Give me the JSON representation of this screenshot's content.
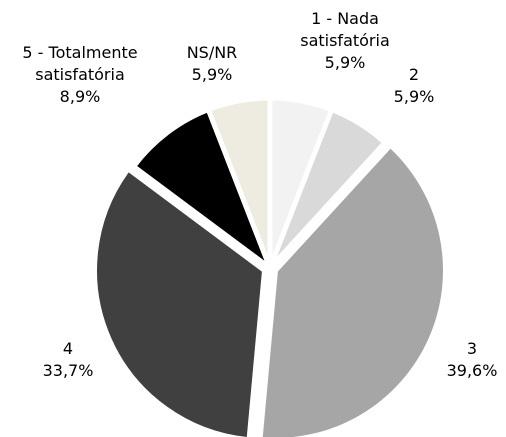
{
  "chart_data": {
    "type": "pie",
    "categories": [
      "1 - Nada satisfatória",
      "2",
      "3",
      "4",
      "5 - Totalmente satisfatória",
      "NS/NR"
    ],
    "values": [
      5.9,
      5.9,
      39.6,
      33.7,
      8.9,
      5.9
    ],
    "value_labels": [
      "5,9%",
      "5,9%",
      "39,6%",
      "33,7%",
      "8,9%",
      "5,9%"
    ],
    "colors": [
      "#f2f2f2",
      "#d9d9d9",
      "#a6a6a6",
      "#404040",
      "#000000",
      "#eeece1"
    ]
  }
}
